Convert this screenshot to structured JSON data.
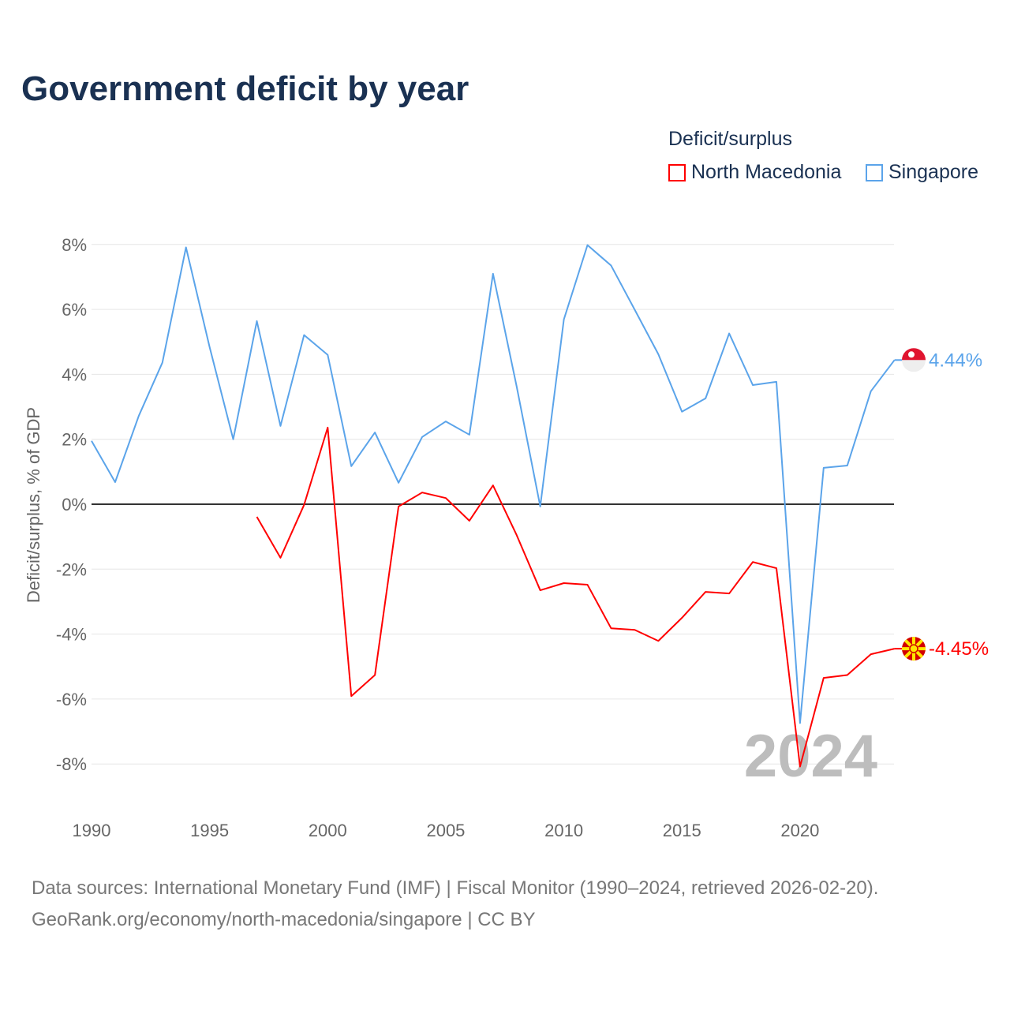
{
  "chart_data": {
    "type": "line",
    "title": "Government deficit by year",
    "xlabel": "",
    "ylabel": "Deficit/surplus, % of GDP",
    "xlim": [
      1990,
      2024
    ],
    "ylim": [
      -9,
      8.5
    ],
    "x_ticks": [
      "1990",
      "1995",
      "2000",
      "2005",
      "2010",
      "2015",
      "2020"
    ],
    "y_ticks": [
      "8%",
      "6%",
      "4%",
      "2%",
      "0%",
      "-2%",
      "-4%",
      "-6%",
      "-8%"
    ],
    "grid": true,
    "legend_title": "Deficit/surplus",
    "legend_position": "top-right",
    "watermark_year": "2024",
    "series": [
      {
        "name": "North Macedonia",
        "color": "#ff0000",
        "end_label": "-4.45%",
        "flag": "north-macedonia-flag",
        "x": [
          1997,
          1998,
          1999,
          2000,
          2001,
          2002,
          2003,
          2004,
          2005,
          2006,
          2007,
          2008,
          2009,
          2010,
          2011,
          2012,
          2013,
          2014,
          2015,
          2016,
          2017,
          2018,
          2019,
          2020,
          2021,
          2022,
          2023,
          2024
        ],
        "values": [
          -0.39,
          -1.65,
          -0.02,
          2.36,
          -5.91,
          -5.26,
          -0.07,
          0.36,
          0.19,
          -0.51,
          0.58,
          -0.95,
          -2.65,
          -2.43,
          -2.48,
          -3.82,
          -3.87,
          -4.21,
          -3.5,
          -2.7,
          -2.75,
          -1.78,
          -1.97,
          -8.08,
          -5.35,
          -5.26,
          -4.62,
          -4.45
        ]
      },
      {
        "name": "Singapore",
        "color": "#5ba4ea",
        "end_label": "4.44%",
        "flag": "singapore-flag",
        "x": [
          1990,
          1991,
          1992,
          1993,
          1994,
          1995,
          1996,
          1997,
          1998,
          1999,
          2000,
          2001,
          2002,
          2003,
          2004,
          2005,
          2006,
          2007,
          2008,
          2009,
          2010,
          2011,
          2012,
          2013,
          2014,
          2015,
          2016,
          2017,
          2018,
          2019,
          2020,
          2021,
          2022,
          2023,
          2024
        ],
        "values": [
          1.95,
          0.68,
          2.72,
          4.36,
          7.91,
          4.84,
          2.0,
          5.64,
          2.41,
          5.21,
          4.6,
          1.17,
          2.21,
          0.66,
          2.07,
          2.55,
          2.14,
          7.1,
          3.63,
          -0.07,
          5.69,
          7.98,
          7.35,
          5.99,
          4.62,
          2.85,
          3.26,
          5.26,
          3.67,
          3.77,
          -6.74,
          1.12,
          1.19,
          3.48,
          4.44
        ]
      }
    ]
  },
  "source": {
    "line1": "Data sources: International Monetary Fund (IMF) | Fiscal Monitor (1990–2024, retrieved 2026-02-20).",
    "line2": "GeoRank.org/economy/north-macedonia/singapore | CC BY"
  }
}
